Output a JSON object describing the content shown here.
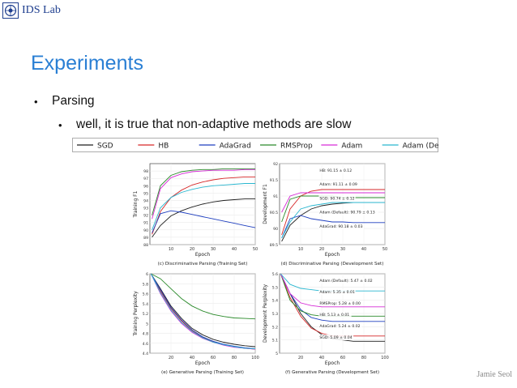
{
  "header": {
    "lab_name": "IDS Lab"
  },
  "slide": {
    "title": "Experiments",
    "bullet_1": "Parsing",
    "bullet_2": "well, it is true that non-adaptive methods are slow"
  },
  "footer": {
    "author": "Jamie Seol"
  },
  "legend": {
    "entries": [
      {
        "label": "SGD",
        "color": "#1f1f1f"
      },
      {
        "label": "HB",
        "color": "#d62728"
      },
      {
        "label": "AdaGrad",
        "color": "#1f3fbf"
      },
      {
        "label": "RMSProp",
        "color": "#2a8a2a"
      },
      {
        "label": "Adam",
        "color": "#d62ad6"
      },
      {
        "label": "Adam (Default)",
        "color": "#29b6cf"
      }
    ]
  },
  "chart_data": [
    {
      "type": "line",
      "caption": "(c) Discriminative Parsing (Training Set)",
      "xlabel": "Epoch",
      "ylabel": "Training F1",
      "xlim": [
        0,
        50
      ],
      "ylim": [
        88,
        99
      ],
      "xticks": [
        10,
        20,
        30,
        40,
        50
      ],
      "yticks": [
        88,
        89,
        90,
        91,
        92,
        93,
        94,
        95,
        96,
        97,
        98
      ],
      "series": [
        {
          "name": "SGD",
          "color": "#1f1f1f",
          "x": [
            1,
            5,
            10,
            15,
            20,
            25,
            30,
            35,
            40,
            45,
            50
          ],
          "y": [
            89.0,
            90.6,
            91.9,
            92.6,
            93.1,
            93.5,
            93.8,
            94.0,
            94.1,
            94.2,
            94.2
          ]
        },
        {
          "name": "HB",
          "color": "#d62728",
          "x": [
            1,
            5,
            10,
            15,
            20,
            25,
            30,
            35,
            40,
            45,
            50
          ],
          "y": [
            89.4,
            92.5,
            94.4,
            95.4,
            96.1,
            96.5,
            96.8,
            97.0,
            97.1,
            97.2,
            97.2
          ]
        },
        {
          "name": "AdaGrad",
          "color": "#1f3fbf",
          "x": [
            1,
            5,
            10,
            15,
            20,
            25,
            30,
            35,
            40,
            45,
            50
          ],
          "y": [
            89.6,
            92.2,
            92.6,
            92.4,
            92.1,
            91.8,
            91.5,
            91.2,
            90.9,
            90.6,
            90.3
          ]
        },
        {
          "name": "RMSProp",
          "color": "#2a8a2a",
          "x": [
            1,
            5,
            10,
            15,
            20,
            25,
            30,
            35,
            40,
            45,
            50
          ],
          "y": [
            92.0,
            96.0,
            97.4,
            97.9,
            98.1,
            98.2,
            98.2,
            98.3,
            98.3,
            98.3,
            98.3
          ]
        },
        {
          "name": "Adam",
          "color": "#d62ad6",
          "x": [
            1,
            5,
            10,
            15,
            20,
            25,
            30,
            35,
            40,
            45,
            50
          ],
          "y": [
            91.5,
            95.6,
            97.1,
            97.6,
            97.9,
            98.0,
            98.1,
            98.1,
            98.1,
            98.2,
            98.2
          ]
        },
        {
          "name": "Adam (Default)",
          "color": "#29b6cf",
          "x": [
            1,
            5,
            10,
            15,
            20,
            25,
            30,
            35,
            40,
            45,
            50
          ],
          "y": [
            90.0,
            93.0,
            94.4,
            95.1,
            95.5,
            95.8,
            96.0,
            96.1,
            96.2,
            96.3,
            96.3
          ]
        }
      ]
    },
    {
      "type": "line",
      "caption": "(d) Discriminative Parsing (Development Set)",
      "xlabel": "Epoch",
      "ylabel": "Development F1",
      "xlim": [
        0,
        50
      ],
      "ylim": [
        89.5,
        92.0
      ],
      "xticks": [
        10,
        20,
        30,
        40,
        50
      ],
      "yticks": [
        89.5,
        90.0,
        90.5,
        91.0,
        91.5,
        92.0
      ],
      "annotations": [
        "HB: 91.15 ± 0.12",
        "Adam: 91.11 ± 0.09",
        "SGD: 90.74 ± 0.12",
        "Adam (Default): 90.79 ± 0.13",
        "AdaGrad: 90.18 ± 0.03"
      ],
      "series": [
        {
          "name": "SGD",
          "color": "#1f1f1f",
          "x": [
            1,
            5,
            10,
            15,
            20,
            25,
            30,
            35,
            40,
            45,
            50
          ],
          "y": [
            89.6,
            90.1,
            90.4,
            90.6,
            90.7,
            90.75,
            90.78,
            90.8,
            90.8,
            90.8,
            90.8
          ]
        },
        {
          "name": "HB",
          "color": "#d62728",
          "x": [
            1,
            5,
            10,
            15,
            20,
            25,
            30,
            35,
            40,
            45,
            50
          ],
          "y": [
            89.8,
            90.6,
            91.0,
            91.15,
            91.2,
            91.2,
            91.2,
            91.2,
            91.2,
            91.2,
            91.2
          ]
        },
        {
          "name": "AdaGrad",
          "color": "#1f3fbf",
          "x": [
            1,
            5,
            10,
            15,
            20,
            25,
            30,
            35,
            40,
            45,
            50
          ],
          "y": [
            89.7,
            90.3,
            90.4,
            90.3,
            90.25,
            90.2,
            90.2,
            90.18,
            90.18,
            90.18,
            90.18
          ]
        },
        {
          "name": "RMSProp",
          "color": "#2a8a2a",
          "x": [
            1,
            5,
            10,
            15,
            20,
            25,
            30,
            35,
            40,
            45,
            50
          ],
          "y": [
            90.2,
            90.9,
            91.0,
            91.0,
            91.0,
            91.0,
            90.95,
            90.95,
            90.95,
            90.95,
            90.95
          ]
        },
        {
          "name": "Adam",
          "color": "#d62ad6",
          "x": [
            1,
            5,
            10,
            15,
            20,
            25,
            30,
            35,
            40,
            45,
            50
          ],
          "y": [
            90.5,
            91.0,
            91.1,
            91.1,
            91.1,
            91.1,
            91.1,
            91.1,
            91.1,
            91.1,
            91.1
          ]
        },
        {
          "name": "Adam (Default)",
          "color": "#29b6cf",
          "x": [
            1,
            5,
            10,
            15,
            20,
            25,
            30,
            35,
            40,
            45,
            50
          ],
          "y": [
            89.7,
            90.2,
            90.6,
            90.7,
            90.75,
            90.8,
            90.8,
            90.8,
            90.8,
            90.8,
            90.8
          ]
        }
      ]
    },
    {
      "type": "line",
      "caption": "(e) Generative Parsing (Training Set)",
      "xlabel": "Epoch",
      "ylabel": "Training Perplexity",
      "xlim": [
        0,
        100
      ],
      "ylim": [
        4.4,
        6.0
      ],
      "xticks": [
        20,
        40,
        60,
        80,
        100
      ],
      "yticks": [
        4.4,
        4.6,
        4.8,
        5.0,
        5.2,
        5.4,
        5.6,
        5.8,
        6.0
      ],
      "series": [
        {
          "name": "SGD",
          "color": "#1f1f1f",
          "x": [
            1,
            10,
            20,
            30,
            40,
            50,
            60,
            70,
            80,
            90,
            100
          ],
          "y": [
            6.0,
            5.7,
            5.35,
            5.1,
            4.9,
            4.77,
            4.68,
            4.62,
            4.58,
            4.55,
            4.53
          ]
        },
        {
          "name": "HB",
          "color": "#d62728",
          "x": [
            1,
            10,
            20,
            30,
            40,
            50,
            60,
            70,
            80,
            90,
            100
          ],
          "y": [
            6.0,
            5.65,
            5.3,
            5.05,
            4.85,
            4.72,
            4.63,
            4.57,
            4.53,
            4.5,
            4.48
          ]
        },
        {
          "name": "AdaGrad",
          "color": "#1f3fbf",
          "x": [
            1,
            10,
            20,
            30,
            40,
            50,
            60,
            70,
            80,
            90,
            100
          ],
          "y": [
            6.0,
            5.68,
            5.32,
            5.07,
            4.87,
            4.73,
            4.64,
            4.58,
            4.54,
            4.51,
            4.49
          ]
        },
        {
          "name": "RMSProp",
          "color": "#2a8a2a",
          "x": [
            1,
            10,
            20,
            30,
            40,
            50,
            60,
            70,
            80,
            90,
            100
          ],
          "y": [
            6.0,
            5.9,
            5.7,
            5.5,
            5.35,
            5.25,
            5.18,
            5.14,
            5.11,
            5.1,
            5.09
          ]
        },
        {
          "name": "Adam",
          "color": "#d62ad6",
          "x": [
            1,
            10,
            20,
            30,
            40,
            50,
            60,
            70,
            80,
            90,
            100
          ],
          "y": [
            6.0,
            5.6,
            5.25,
            5.0,
            4.82,
            4.7,
            4.62,
            4.56,
            4.52,
            4.5,
            4.48
          ]
        },
        {
          "name": "Adam (Default)",
          "color": "#29b6cf",
          "x": [
            1,
            10,
            20,
            30,
            40,
            50,
            60,
            70,
            80,
            90,
            100
          ],
          "y": [
            6.0,
            5.62,
            5.27,
            5.02,
            4.84,
            4.71,
            4.62,
            4.57,
            4.53,
            4.5,
            4.49
          ]
        }
      ]
    },
    {
      "type": "line",
      "caption": "(f) Generative Parsing (Development Set)",
      "xlabel": "Epoch",
      "ylabel": "Development Perplexity",
      "xlim": [
        0,
        100
      ],
      "ylim": [
        5.0,
        5.6
      ],
      "xticks": [
        20,
        40,
        60,
        80,
        100
      ],
      "yticks": [
        5.0,
        5.1,
        5.2,
        5.3,
        5.4,
        5.5,
        5.6
      ],
      "annotations": [
        "Adam (Default): 5.47 ± 0.02",
        "Adam: 5.35 ± 0.01",
        "RMSProp: 5.28 ± 0.00",
        "HB: 5.13 ± 0.01",
        "AdaGrad: 5.24 ± 0.02",
        "SGD: 5.09 ± 0.04"
      ],
      "series": [
        {
          "name": "SGD",
          "color": "#1f1f1f",
          "x": [
            1,
            10,
            20,
            30,
            40,
            50,
            60,
            70,
            80,
            90,
            100
          ],
          "y": [
            5.6,
            5.45,
            5.3,
            5.2,
            5.14,
            5.11,
            5.1,
            5.09,
            5.09,
            5.09,
            5.09
          ]
        },
        {
          "name": "HB",
          "color": "#d62728",
          "x": [
            1,
            10,
            20,
            30,
            40,
            50,
            60,
            70,
            80,
            90,
            100
          ],
          "y": [
            5.6,
            5.42,
            5.28,
            5.19,
            5.15,
            5.13,
            5.13,
            5.13,
            5.13,
            5.13,
            5.13
          ]
        },
        {
          "name": "AdaGrad",
          "color": "#1f3fbf",
          "x": [
            1,
            10,
            20,
            30,
            40,
            50,
            60,
            70,
            80,
            90,
            100
          ],
          "y": [
            5.6,
            5.45,
            5.33,
            5.27,
            5.25,
            5.24,
            5.24,
            5.24,
            5.24,
            5.24,
            5.24
          ]
        },
        {
          "name": "RMSProp",
          "color": "#2a8a2a",
          "x": [
            1,
            10,
            20,
            30,
            40,
            50,
            60,
            70,
            80,
            90,
            100
          ],
          "y": [
            5.6,
            5.4,
            5.32,
            5.29,
            5.28,
            5.28,
            5.28,
            5.28,
            5.28,
            5.28,
            5.28
          ]
        },
        {
          "name": "Adam",
          "color": "#d62ad6",
          "x": [
            1,
            10,
            20,
            30,
            40,
            50,
            60,
            70,
            80,
            90,
            100
          ],
          "y": [
            5.6,
            5.45,
            5.38,
            5.36,
            5.35,
            5.35,
            5.35,
            5.35,
            5.35,
            5.35,
            5.35
          ]
        },
        {
          "name": "Adam (Default)",
          "color": "#29b6cf",
          "x": [
            1,
            10,
            20,
            30,
            40,
            50,
            60,
            70,
            80,
            90,
            100
          ],
          "y": [
            5.6,
            5.52,
            5.49,
            5.48,
            5.47,
            5.47,
            5.47,
            5.47,
            5.47,
            5.47,
            5.47
          ]
        }
      ]
    }
  ]
}
